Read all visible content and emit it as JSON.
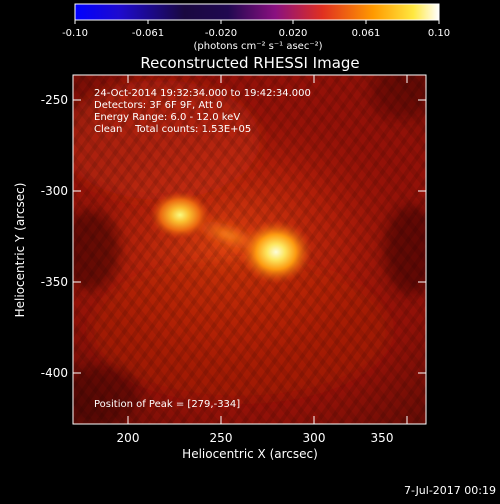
{
  "colorbar": {
    "ticks": [
      "-0.10",
      "-0.061",
      "-0.020",
      "0.020",
      "0.061",
      "0.10"
    ],
    "unit_label": "(photons cm⁻² s⁻¹ asec⁻²)"
  },
  "title": "Reconstructed RHESSI Image",
  "info": {
    "line1": "24-Oct-2014 19:32:34.000 to 19:42:34.000",
    "line2": "Detectors: 3F 6F 9F, Att 0",
    "line3": "Energy Range: 6.0 - 12.0 keV",
    "line4": "Clean    Total counts: 1.53E+05"
  },
  "peak_label": "Position of Peak = [279,-334]",
  "x_axis": {
    "label": "Heliocentric X (arcsec)",
    "ticks": [
      "200",
      "250",
      "300",
      "350"
    ],
    "range": [
      170,
      362
    ]
  },
  "y_axis": {
    "label": "Heliocentric Y (arcsec)",
    "ticks": [
      "-250",
      "-300",
      "-350",
      "-400"
    ],
    "range": [
      -428,
      -235
    ]
  },
  "footer_date": "7-Jul-2017 00:19",
  "colors": {
    "background": "#000000",
    "foreground": "#ffffff",
    "map_floor": "#8a0c06",
    "map_peak": "#ffffe0"
  }
}
